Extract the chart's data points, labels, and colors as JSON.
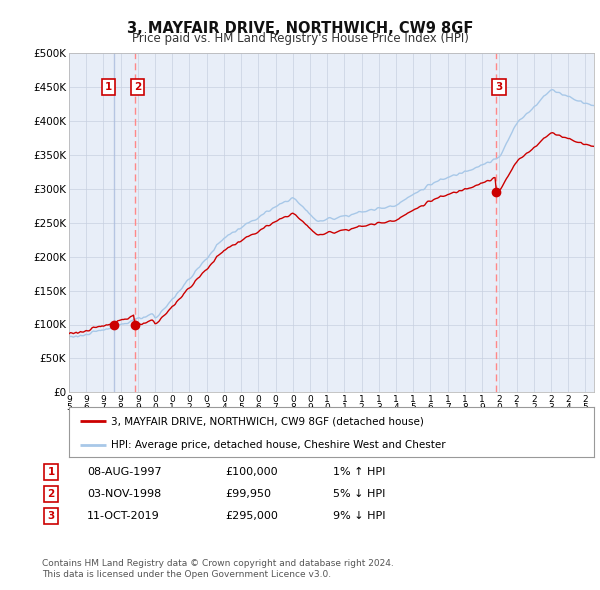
{
  "title": "3, MAYFAIR DRIVE, NORTHWICH, CW9 8GF",
  "subtitle": "Price paid vs. HM Land Registry's House Price Index (HPI)",
  "ylabel_ticks": [
    "£0",
    "£50K",
    "£100K",
    "£150K",
    "£200K",
    "£250K",
    "£300K",
    "£350K",
    "£400K",
    "£450K",
    "£500K"
  ],
  "ytick_values": [
    0,
    50000,
    100000,
    150000,
    200000,
    250000,
    300000,
    350000,
    400000,
    450000,
    500000
  ],
  "xlim_start": 1995.0,
  "xlim_end": 2025.5,
  "ylim": [
    0,
    500000
  ],
  "sales": [
    {
      "date": 1997.6,
      "price": 100000,
      "label": "1"
    },
    {
      "date": 1998.83,
      "price": 99950,
      "label": "2"
    },
    {
      "date": 2019.78,
      "price": 295000,
      "label": "3"
    }
  ],
  "hpi_color": "#a8c8e8",
  "sale_line_color": "#cc0000",
  "sale_dot_color": "#cc0000",
  "vline1_color": "#aabbdd",
  "vline_color": "#ff8888",
  "legend_entries": [
    "3, MAYFAIR DRIVE, NORTHWICH, CW9 8GF (detached house)",
    "HPI: Average price, detached house, Cheshire West and Chester"
  ],
  "table_rows": [
    {
      "num": "1",
      "date": "08-AUG-1997",
      "price": "£100,000",
      "hpi": "1% ↑ HPI"
    },
    {
      "num": "2",
      "date": "03-NOV-1998",
      "price": "£99,950",
      "hpi": "5% ↓ HPI"
    },
    {
      "num": "3",
      "date": "11-OCT-2019",
      "price": "£295,000",
      "hpi": "9% ↓ HPI"
    }
  ],
  "footer": "Contains HM Land Registry data © Crown copyright and database right 2024.\nThis data is licensed under the Open Government Licence v3.0.",
  "background_color": "#ffffff",
  "plot_bg_color": "#e8eef8",
  "grid_color": "#c8d0e0"
}
